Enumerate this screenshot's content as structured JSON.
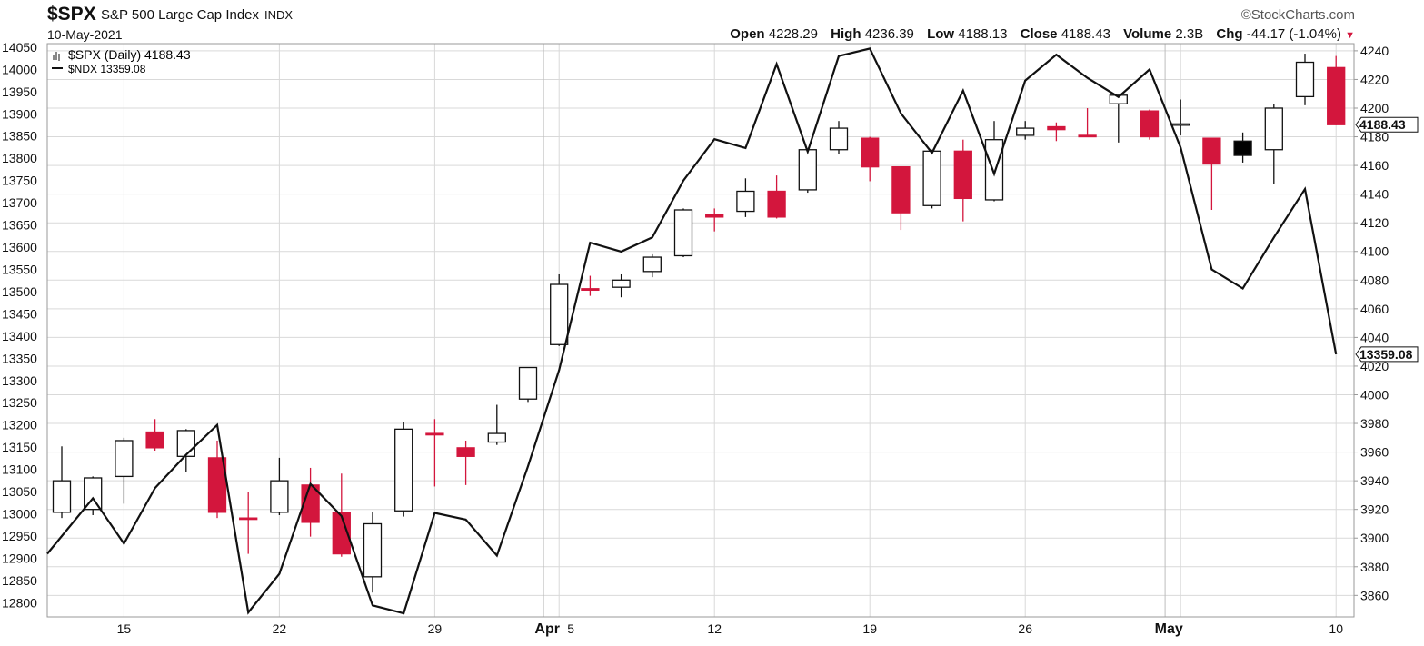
{
  "header": {
    "symbol": "$SPX",
    "name": "S&P 500 Large Cap Index",
    "exchange": "INDX",
    "date": "10-May-2021",
    "brand": "©StockCharts.com",
    "open_label": "Open",
    "open": "4228.29",
    "high_label": "High",
    "high": "4236.39",
    "low_label": "Low",
    "low": "4188.13",
    "close_label": "Close",
    "close": "4188.43",
    "volume_label": "Volume",
    "volume": "2.3B",
    "chg_label": "Chg",
    "chg": "-44.17 (-1.04%)",
    "chg_arrow": "▼"
  },
  "legend": {
    "spx": "$SPX (Daily) 4188.43",
    "ndx": "$NDX 13359.08"
  },
  "colors": {
    "up": "#ffffff",
    "down": "#d3163d",
    "black_candle": "#000000",
    "line": "#111111",
    "grid": "#d9d9d9"
  },
  "chart_data": {
    "type": "candlestick",
    "title": "$SPX S&P 500 Large Cap Index",
    "grid": true,
    "x_ticks": [
      {
        "i": 2,
        "label": "15",
        "bold": false
      },
      {
        "i": 7,
        "label": "22",
        "bold": false
      },
      {
        "i": 12,
        "label": "29",
        "bold": false
      },
      {
        "i": 16,
        "label": "Apr",
        "bold": true
      },
      {
        "i": 16,
        "label": "5",
        "bold": false
      },
      {
        "i": 21,
        "label": "12",
        "bold": false
      },
      {
        "i": 26,
        "label": "19",
        "bold": false
      },
      {
        "i": 31,
        "label": "26",
        "bold": false
      },
      {
        "i": 36,
        "label": "May",
        "bold": true
      },
      {
        "i": 41,
        "label": "10",
        "bold": false
      }
    ],
    "month_gridlines": [
      15.5,
      35.5
    ],
    "right_axis": {
      "label": "",
      "range": [
        3845,
        4245
      ],
      "ticks": [
        3860,
        3880,
        3900,
        3920,
        3940,
        3960,
        3980,
        4000,
        4020,
        4040,
        4060,
        4080,
        4100,
        4120,
        4140,
        4160,
        4180,
        4200,
        4220,
        4240
      ],
      "last_value": "4188.43"
    },
    "left_axis": {
      "label": "",
      "range": [
        12768,
        14058
      ],
      "ticks": [
        12800,
        12850,
        12900,
        12950,
        13000,
        13050,
        13100,
        13150,
        13200,
        13250,
        13300,
        13350,
        13400,
        13450,
        13500,
        13550,
        13600,
        13650,
        13700,
        13750,
        13800,
        13850,
        13900,
        13950,
        14000,
        14050
      ],
      "last_value": "13359.08"
    },
    "candles": [
      {
        "o": 3918,
        "h": 3964,
        "l": 3914,
        "c": 3940,
        "color": "up"
      },
      {
        "o": 3920,
        "h": 3943,
        "l": 3916,
        "c": 3942,
        "color": "up"
      },
      {
        "o": 3943,
        "h": 3970,
        "l": 3924,
        "c": 3968,
        "color": "up"
      },
      {
        "o": 3974,
        "h": 3983,
        "l": 3961,
        "c": 3963,
        "color": "down"
      },
      {
        "o": 3957,
        "h": 3976,
        "l": 3946,
        "c": 3975,
        "color": "up"
      },
      {
        "o": 3956,
        "h": 3968,
        "l": 3914,
        "c": 3918,
        "color": "down"
      },
      {
        "o": 3914,
        "h": 3932,
        "l": 3889,
        "c": 3914,
        "color": "down"
      },
      {
        "o": 3918,
        "h": 3956,
        "l": 3916,
        "c": 3940,
        "color": "up"
      },
      {
        "o": 3937,
        "h": 3949,
        "l": 3901,
        "c": 3911,
        "color": "down"
      },
      {
        "o": 3918,
        "h": 3945,
        "l": 3887,
        "c": 3889,
        "color": "down"
      },
      {
        "o": 3873,
        "h": 3918,
        "l": 3862,
        "c": 3910,
        "color": "up"
      },
      {
        "o": 3919,
        "h": 3981,
        "l": 3915,
        "c": 3976,
        "color": "up"
      },
      {
        "o": 3973,
        "h": 3983,
        "l": 3936,
        "c": 3972,
        "color": "down"
      },
      {
        "o": 3963,
        "h": 3968,
        "l": 3937,
        "c": 3957,
        "color": "down"
      },
      {
        "o": 3967,
        "h": 3993,
        "l": 3965,
        "c": 3973,
        "color": "up"
      },
      {
        "o": 3997,
        "h": 4017,
        "l": 3995,
        "c": 4019,
        "color": "up"
      },
      {
        "o": 4035,
        "h": 4084,
        "l": 4034,
        "c": 4077,
        "color": "up"
      },
      {
        "o": 4073,
        "h": 4083,
        "l": 4069,
        "c": 4074,
        "color": "down"
      },
      {
        "o": 4075,
        "h": 4084,
        "l": 4068,
        "c": 4080,
        "color": "up"
      },
      {
        "o": 4086,
        "h": 4098,
        "l": 4082,
        "c": 4096,
        "color": "up"
      },
      {
        "o": 4097,
        "h": 4130,
        "l": 4096,
        "c": 4129,
        "color": "up"
      },
      {
        "o": 4126,
        "h": 4130,
        "l": 4114,
        "c": 4124,
        "color": "down"
      },
      {
        "o": 4128,
        "h": 4151,
        "l": 4124,
        "c": 4142,
        "color": "up"
      },
      {
        "o": 4142,
        "h": 4153,
        "l": 4123,
        "c": 4124,
        "color": "down"
      },
      {
        "o": 4143,
        "h": 4171,
        "l": 4141,
        "c": 4171,
        "color": "up"
      },
      {
        "o": 4171,
        "h": 4191,
        "l": 4168,
        "c": 4186,
        "color": "up"
      },
      {
        "o": 4179,
        "h": 4180,
        "l": 4149,
        "c": 4159,
        "color": "down"
      },
      {
        "o": 4159,
        "h": 4159,
        "l": 4115,
        "c": 4127,
        "color": "down"
      },
      {
        "o": 4132,
        "h": 4171,
        "l": 4130,
        "c": 4170,
        "color": "up"
      },
      {
        "o": 4170,
        "h": 4178,
        "l": 4121,
        "c": 4137,
        "color": "down"
      },
      {
        "o": 4136,
        "h": 4191,
        "l": 4135,
        "c": 4178,
        "color": "up"
      },
      {
        "o": 4181,
        "h": 4191,
        "l": 4178,
        "c": 4186,
        "color": "up"
      },
      {
        "o": 4187,
        "h": 4190,
        "l": 4177,
        "c": 4185,
        "color": "down"
      },
      {
        "o": 4181,
        "h": 4200,
        "l": 4180,
        "c": 4180,
        "color": "down"
      },
      {
        "o": 4203,
        "h": 4209,
        "l": 4176,
        "c": 4209,
        "color": "up"
      },
      {
        "o": 4198,
        "h": 4199,
        "l": 4178,
        "c": 4180,
        "color": "down"
      },
      {
        "o": 4189,
        "h": 4206,
        "l": 4181,
        "c": 4189,
        "color": "up"
      },
      {
        "o": 4179,
        "h": 4179,
        "l": 4129,
        "c": 4161,
        "color": "down"
      },
      {
        "o": 4177,
        "h": 4183,
        "l": 4162,
        "c": 4167,
        "color": "black"
      },
      {
        "o": 4171,
        "h": 4203,
        "l": 4147,
        "c": 4200,
        "color": "up"
      },
      {
        "o": 4208,
        "h": 4238,
        "l": 4202,
        "c": 4232,
        "color": "up"
      },
      {
        "o": 4228.29,
        "h": 4236.39,
        "l": 4188.13,
        "c": 4188.43,
        "color": "down"
      }
    ],
    "series": [
      {
        "name": "$NDX",
        "values": [
          12910,
          13035,
          12933,
          13058,
          13133,
          13200,
          12778,
          12865,
          13067,
          12995,
          12794,
          12776,
          13002,
          12987,
          12906,
          13107,
          13323,
          13610,
          13590,
          13622,
          13750,
          13843,
          13823,
          14012,
          13815,
          14030,
          14047,
          13901,
          13812,
          13952,
          13765,
          13975,
          14033,
          13981,
          13938,
          14000,
          13824,
          13550,
          13507,
          13622,
          13731,
          13359.08
        ]
      }
    ]
  }
}
